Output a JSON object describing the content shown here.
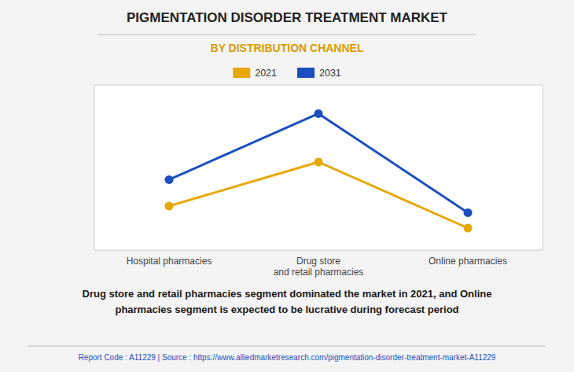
{
  "chart_data": {
    "type": "line",
    "title": "PIGMENTATION DISORDER TREATMENT MARKET",
    "subtitle": "BY DISTRIBUTION CHANNEL",
    "categories": [
      "Hospital pharmacies",
      "Drug store\nand retail pharmacies",
      "Online pharmacies"
    ],
    "series": [
      {
        "name": "2021",
        "color": "#E8A800",
        "values": [
          2,
          4,
          1
        ]
      },
      {
        "name": "2031",
        "color": "#1B4FBF",
        "values": [
          3.2,
          6.2,
          1.7
        ]
      }
    ],
    "ylim": [
      0,
      7.5
    ],
    "yticks": [],
    "grid": false,
    "legend": "top",
    "tick_labels": "x",
    "marker": "circle",
    "annotations": [
      "Drug store and retail pharmacies segment dominated the market in 2021, and Online\npharmacies segment is expected to be lucrative during forecast period",
      "Report Code : A11229  |  Source : https://www.alliedmarketresearch.com/pigmentation-disorder-treatment-market-A11229"
    ]
  }
}
